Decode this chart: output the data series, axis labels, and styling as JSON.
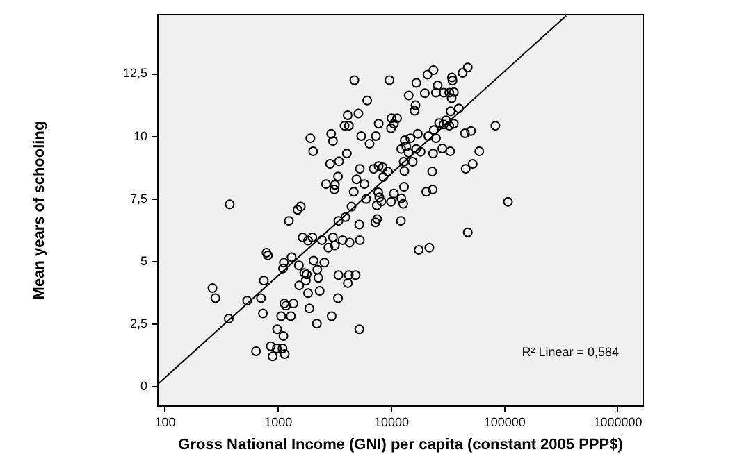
{
  "chart_data": {
    "type": "scatter",
    "xlabel": "Gross National Income (GNI) per capita (constant 2005 PPP$)",
    "ylabel": "Mean years of schooling",
    "annotations": [
      "R² Linear = 0,584"
    ],
    "log": "x",
    "marker": "circle",
    "legend": false,
    "xlim": [
      85,
      1700000
    ],
    "xticks": [
      100,
      1000,
      10000,
      100000,
      1000000
    ],
    "ylim": [
      -0.8,
      14.9
    ],
    "yticks": [
      0,
      {
        "value": 2.5,
        "label": "2,5"
      },
      5,
      {
        "value": 7.5,
        "label": "7,5"
      },
      10,
      {
        "value": 12.5,
        "label": "12,5"
      }
    ],
    "series": [
      {
        "type": "scatter",
        "color": "#000000",
        "x": [
          4700,
          9600,
          16600,
          20800,
          19700,
          14200,
          16300,
          16000,
          6100,
          5100,
          4100,
          3850,
          4200,
          7700,
          10000,
          11200,
          10500,
          9900,
          2930,
          3040,
          1920,
          2030,
          5400,
          7280,
          6400,
          4030,
          13100,
          14700,
          17100,
          21200,
          12200,
          13500,
          14200,
          16500,
          18100,
          15400,
          12800,
          2870,
          3440,
          5250,
          6950,
          7690,
          8370,
          9290,
          13000,
          8470,
          3370,
          4900,
          5760,
          2640,
          3160,
          3130,
          4640,
          12900,
          10500,
          7640,
          7800,
          8150,
          7420,
          5970,
          9910,
          12200,
          12700,
          20300,
          372,
          1580,
          1480,
          4430,
          1240,
          3920,
          3400,
          7480,
          12100,
          47200,
          42500,
          23500,
          34200,
          34600,
          25600,
          24700,
          28900,
          32400,
          35600,
          34000,
          39400,
          33300,
          82800,
          35500,
          30300,
          26400,
          28900,
          32400,
          23700,
          24700,
          44600,
          50400,
          59600,
          28100,
          33000,
          23300,
          52200,
          45300,
          22900,
          23100,
          107000,
          5190,
          7210,
          1640,
          1830,
          2000,
          2430,
          3040,
          3160,
          2770,
          3700,
          4260,
          5250,
          17400,
          21600,
          787,
          809,
          1310,
          1120,
          1100,
          1520,
          2050,
          2550,
          2210,
          1700,
          1780,
          2260,
          1750,
          745,
          1530,
          3400,
          4190,
          4820,
          4110,
          262,
          278,
          1830,
          2320,
          531,
          703,
          3370,
          1130,
          1170,
          1360,
          1880,
          731,
          1060,
          1290,
          2960,
          365,
          2190,
          977,
          5200,
          1110,
          857,
          970,
          1090,
          635,
          1140,
          891,
          47200
        ],
        "values": [
          12.25,
          12.25,
          12.14,
          12.47,
          11.73,
          11.64,
          11.25,
          11.03,
          11.44,
          10.92,
          10.85,
          10.43,
          10.43,
          10.51,
          10.73,
          10.73,
          10.51,
          10.33,
          10.11,
          9.82,
          9.93,
          9.41,
          10.02,
          10.02,
          9.71,
          9.32,
          9.85,
          9.93,
          10.11,
          10.02,
          9.5,
          9.6,
          9.35,
          9.5,
          9.39,
          8.99,
          8.99,
          8.91,
          9.01,
          8.71,
          8.71,
          8.82,
          8.77,
          8.6,
          8.62,
          8.38,
          8.4,
          8.29,
          8.1,
          8.1,
          8.07,
          7.88,
          7.79,
          7.99,
          7.72,
          7.77,
          7.57,
          7.4,
          7.25,
          7.5,
          7.39,
          7.53,
          7.31,
          7.79,
          7.29,
          7.2,
          7.07,
          7.2,
          6.63,
          6.78,
          6.63,
          6.7,
          6.63,
          12.76,
          12.54,
          12.65,
          12.36,
          12.23,
          12.04,
          11.75,
          11.75,
          11.75,
          11.77,
          11.53,
          11.12,
          11.01,
          10.43,
          10.51,
          10.65,
          10.54,
          10.48,
          10.43,
          10.26,
          9.93,
          10.13,
          10.22,
          9.41,
          9.52,
          9.41,
          9.32,
          8.91,
          8.71,
          8.6,
          7.88,
          7.39,
          6.48,
          6.57,
          5.97,
          5.84,
          5.97,
          5.86,
          5.97,
          5.65,
          5.56,
          5.86,
          5.76,
          5.86,
          5.47,
          5.56,
          5.36,
          5.25,
          5.18,
          4.96,
          4.73,
          4.85,
          5.04,
          4.96,
          4.68,
          4.55,
          4.49,
          4.35,
          4.24,
          4.24,
          4.05,
          4.46,
          4.46,
          4.46,
          4.14,
          3.94,
          3.54,
          3.74,
          3.83,
          3.44,
          3.54,
          3.54,
          3.33,
          3.24,
          3.33,
          3.13,
          2.93,
          2.82,
          2.82,
          2.82,
          2.72,
          2.52,
          2.3,
          2.3,
          2.03,
          1.62,
          1.53,
          1.53,
          1.42,
          1.31,
          1.22,
          6.17
        ]
      },
      {
        "type": "line",
        "color": "#000000",
        "marker": "none",
        "x": [
          85,
          350000
        ],
        "values": [
          0.08,
          14.83
        ]
      }
    ]
  }
}
